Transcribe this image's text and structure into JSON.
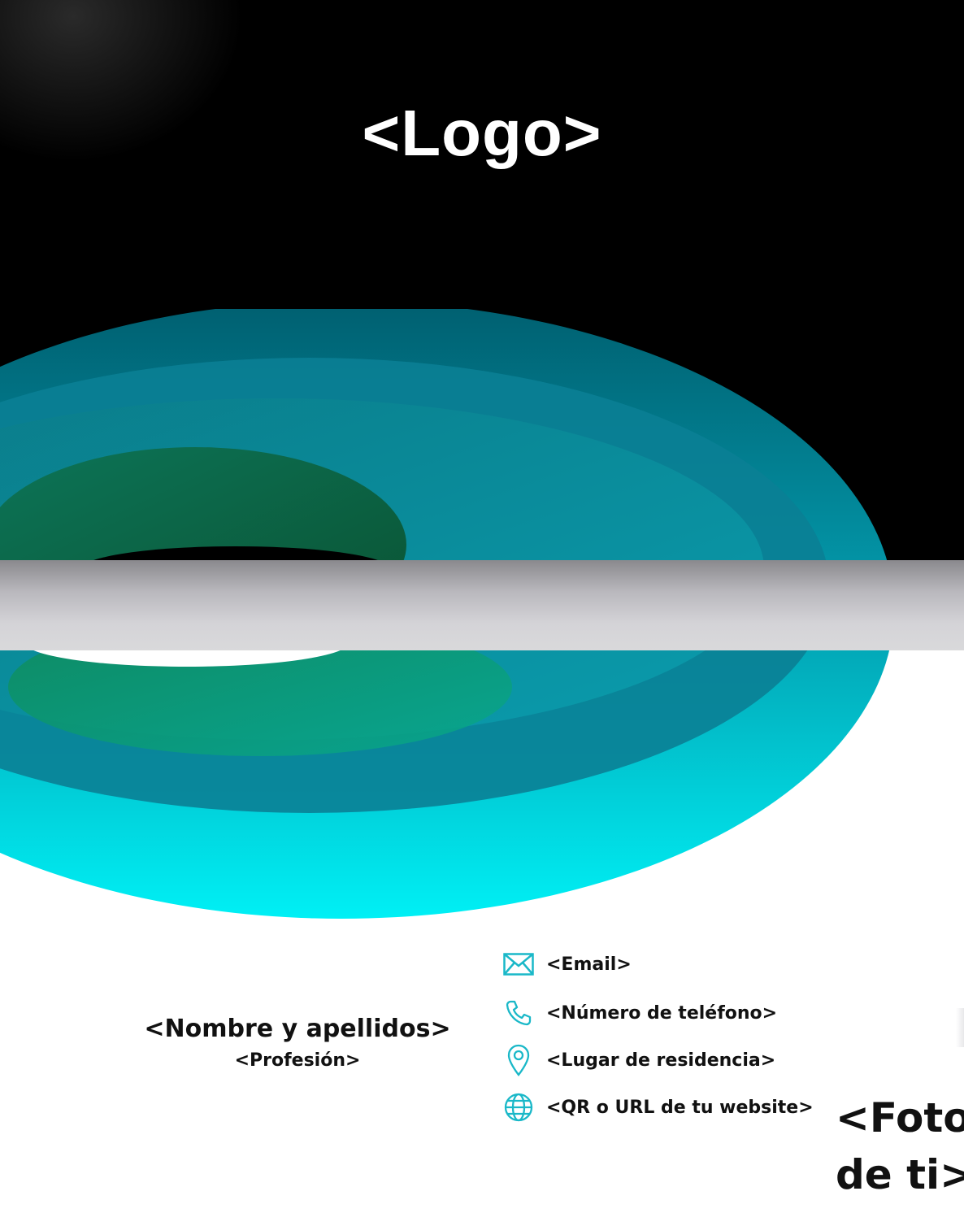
{
  "header": {
    "logo_text": "<Logo>"
  },
  "identity": {
    "name": "<Nombre y apellidos>",
    "profession": "<Profesión>"
  },
  "contact": {
    "items": [
      {
        "icon": "envelope-icon",
        "text": "<Email>"
      },
      {
        "icon": "phone-icon",
        "text": "<Número de teléfono>"
      },
      {
        "icon": "location-pin-icon",
        "text": "<Lugar de residencia>"
      },
      {
        "icon": "globe-icon",
        "text": "<QR o URL de tu website>"
      }
    ]
  },
  "photo": {
    "line1": "<Foto",
    "line2": "de ti>"
  },
  "colors": {
    "background_top": "#000000",
    "background_bottom": "#ffffff",
    "accent_cyan": "#00e8f0",
    "accent_teal": "#0a8fa0",
    "accent_green": "#0b6a3a",
    "separator_gray": "#c8c7cc",
    "icon_color": "#1ab8c8",
    "text": "#111111"
  }
}
